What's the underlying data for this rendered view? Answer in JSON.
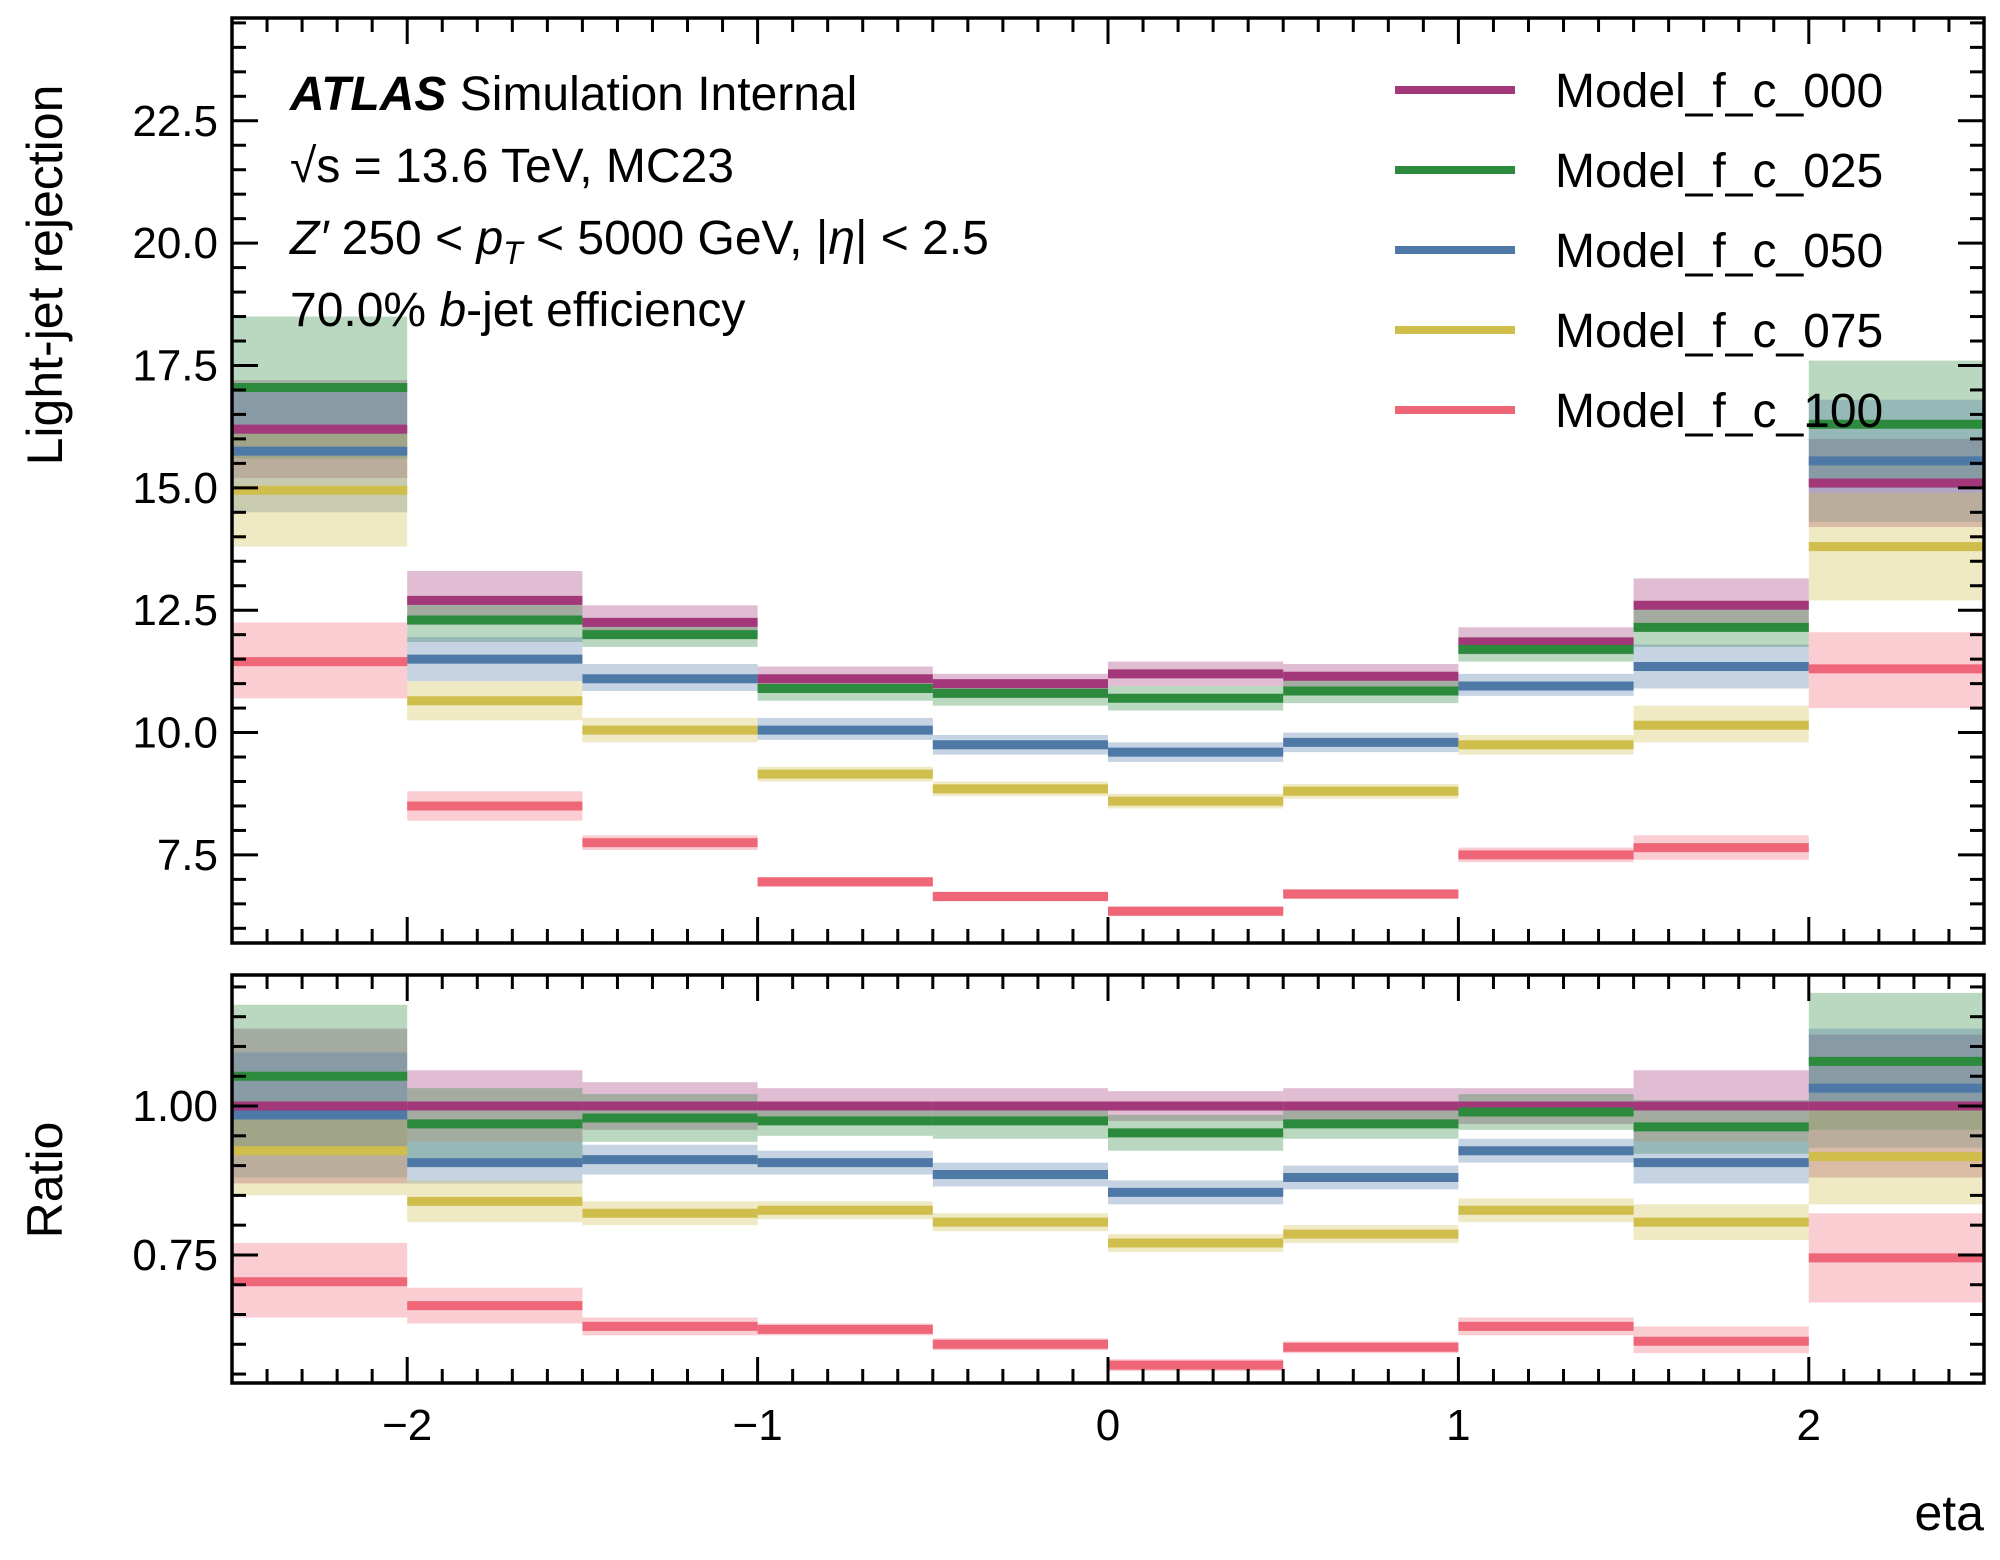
{
  "chart_data": [
    {
      "type": "step",
      "panel": "main",
      "xlabel": "",
      "ylabel": "Light-jet rejection",
      "ylim": [
        5.7,
        24.6
      ],
      "xlim": [
        -2.5,
        2.5
      ],
      "x_edges": [
        -2.5,
        -2.0,
        -1.5,
        -1.0,
        -0.5,
        0.0,
        0.5,
        1.0,
        1.5,
        2.0,
        2.5
      ],
      "yticks": [
        7.5,
        10.0,
        12.5,
        15.0,
        17.5,
        20.0,
        22.5
      ],
      "ytick_labels": [
        "7.5",
        "10.0",
        "12.5",
        "15.0",
        "17.5",
        "20.0",
        "22.5"
      ],
      "legend_position": "top-right",
      "series": [
        {
          "name": "Model_f_c_000",
          "color": "#a2387a",
          "values": [
            16.2,
            12.7,
            12.25,
            11.1,
            11.0,
            11.2,
            11.15,
            11.85,
            12.6,
            15.1
          ],
          "lower": [
            15.2,
            12.2,
            11.95,
            10.9,
            10.8,
            10.95,
            10.9,
            11.6,
            12.1,
            14.2
          ],
          "upper": [
            17.2,
            13.3,
            12.6,
            11.35,
            11.2,
            11.45,
            11.4,
            12.15,
            13.15,
            16.0
          ]
        },
        {
          "name": "Model_f_c_025",
          "color": "#2c8a3c",
          "values": [
            17.05,
            12.3,
            12.0,
            10.9,
            10.8,
            10.7,
            10.85,
            11.7,
            12.15,
            16.3
          ],
          "lower": [
            15.6,
            11.85,
            11.75,
            10.65,
            10.55,
            10.45,
            10.6,
            11.45,
            11.75,
            15.0
          ],
          "upper": [
            18.5,
            12.75,
            12.25,
            11.1,
            11.05,
            10.95,
            11.1,
            11.95,
            12.55,
            17.6
          ]
        },
        {
          "name": "Model_f_c_050",
          "color": "#4e79a7",
          "values": [
            15.75,
            11.5,
            11.1,
            10.05,
            9.75,
            9.6,
            9.8,
            10.95,
            11.35,
            15.55
          ],
          "lower": [
            14.5,
            11.05,
            10.85,
            9.85,
            9.55,
            9.4,
            9.6,
            10.75,
            10.9,
            14.3
          ],
          "upper": [
            17.0,
            11.95,
            11.4,
            10.3,
            9.95,
            9.8,
            10.0,
            11.2,
            11.8,
            16.8
          ]
        },
        {
          "name": "Model_f_c_075",
          "color": "#cfbd4c",
          "values": [
            14.95,
            10.65,
            10.05,
            9.15,
            8.85,
            8.6,
            8.8,
            9.75,
            10.15,
            13.8
          ],
          "lower": [
            13.8,
            10.25,
            9.8,
            9.0,
            8.7,
            8.45,
            8.65,
            9.55,
            9.8,
            12.7
          ],
          "upper": [
            16.1,
            11.05,
            10.3,
            9.3,
            9.0,
            8.75,
            8.95,
            9.95,
            10.55,
            14.9
          ]
        },
        {
          "name": "Model_f_c_100",
          "color": "#ee6677",
          "values": [
            11.45,
            8.5,
            7.75,
            6.95,
            6.65,
            6.35,
            6.7,
            7.5,
            7.65,
            11.3
          ],
          "lower": [
            10.7,
            8.2,
            7.6,
            6.85,
            6.55,
            6.25,
            6.6,
            7.35,
            7.4,
            10.5
          ],
          "upper": [
            12.25,
            8.8,
            7.9,
            7.05,
            6.75,
            6.45,
            6.8,
            7.65,
            7.9,
            12.05
          ]
        }
      ]
    },
    {
      "type": "step",
      "panel": "ratio",
      "xlabel": "eta",
      "ylabel": "Ratio",
      "ylim": [
        0.535,
        1.22
      ],
      "xlim": [
        -2.5,
        2.5
      ],
      "x_edges": [
        -2.5,
        -2.0,
        -1.5,
        -1.0,
        -0.5,
        0.0,
        0.5,
        1.0,
        1.5,
        2.0,
        2.5
      ],
      "xticks": [
        -2,
        -1,
        0,
        1,
        2
      ],
      "xtick_labels": [
        "−2",
        "−1",
        "0",
        "1",
        "2"
      ],
      "yticks": [
        0.75,
        1.0
      ],
      "ytick_labels": [
        "0.75",
        "1.00"
      ],
      "series": [
        {
          "name": "Model_f_c_000",
          "color": "#a2387a",
          "values": [
            1.0,
            1.0,
            1.0,
            1.0,
            1.0,
            1.0,
            1.0,
            1.0,
            1.0,
            1.0
          ],
          "lower": [
            0.87,
            0.94,
            0.96,
            0.97,
            0.97,
            0.975,
            0.97,
            0.97,
            0.94,
            0.88
          ],
          "upper": [
            1.13,
            1.06,
            1.04,
            1.03,
            1.03,
            1.025,
            1.03,
            1.03,
            1.06,
            1.12
          ]
        },
        {
          "name": "Model_f_c_025",
          "color": "#2c8a3c",
          "values": [
            1.05,
            0.97,
            0.98,
            0.975,
            0.975,
            0.955,
            0.97,
            0.99,
            0.965,
            1.075
          ],
          "lower": [
            0.93,
            0.91,
            0.94,
            0.95,
            0.945,
            0.925,
            0.945,
            0.96,
            0.92,
            0.96
          ],
          "upper": [
            1.17,
            1.03,
            1.02,
            1.0,
            1.005,
            0.985,
            0.995,
            1.02,
            1.01,
            1.19
          ]
        },
        {
          "name": "Model_f_c_050",
          "color": "#4e79a7",
          "values": [
            0.985,
            0.905,
            0.91,
            0.905,
            0.885,
            0.855,
            0.88,
            0.925,
            0.905,
            1.03
          ],
          "lower": [
            0.88,
            0.87,
            0.885,
            0.885,
            0.865,
            0.835,
            0.86,
            0.905,
            0.87,
            0.93
          ],
          "upper": [
            1.09,
            0.94,
            0.935,
            0.925,
            0.905,
            0.875,
            0.9,
            0.945,
            0.94,
            1.13
          ]
        },
        {
          "name": "Model_f_c_075",
          "color": "#cfbd4c",
          "values": [
            0.925,
            0.84,
            0.82,
            0.825,
            0.805,
            0.77,
            0.785,
            0.825,
            0.805,
            0.915
          ],
          "lower": [
            0.85,
            0.805,
            0.8,
            0.81,
            0.79,
            0.755,
            0.77,
            0.805,
            0.775,
            0.835
          ],
          "upper": [
            1.0,
            0.875,
            0.84,
            0.84,
            0.82,
            0.785,
            0.8,
            0.845,
            0.835,
            0.995
          ]
        },
        {
          "name": "Model_f_c_100",
          "color": "#ee6677",
          "values": [
            0.705,
            0.665,
            0.63,
            0.625,
            0.6,
            0.565,
            0.595,
            0.63,
            0.605,
            0.745
          ],
          "lower": [
            0.645,
            0.635,
            0.615,
            0.615,
            0.59,
            0.555,
            0.585,
            0.615,
            0.585,
            0.67
          ],
          "upper": [
            0.77,
            0.695,
            0.645,
            0.635,
            0.61,
            0.575,
            0.605,
            0.645,
            0.63,
            0.82
          ]
        }
      ]
    }
  ],
  "annotation": {
    "atlas": "ATLAS",
    "atlas_suffix": " Simulation Internal",
    "line2": "√s = 13.6 TeV, MC23",
    "line3_z": "Z′",
    "line3_a": " 250 < ",
    "line3_p": "p",
    "line3_t": "T",
    "line3_b": " < 5000 GeV, |",
    "line3_eta": "η",
    "line3_c": "| < 2.5",
    "line4_a": "70.0% ",
    "line4_b": "b",
    "line4_c": "-jet efficiency"
  }
}
